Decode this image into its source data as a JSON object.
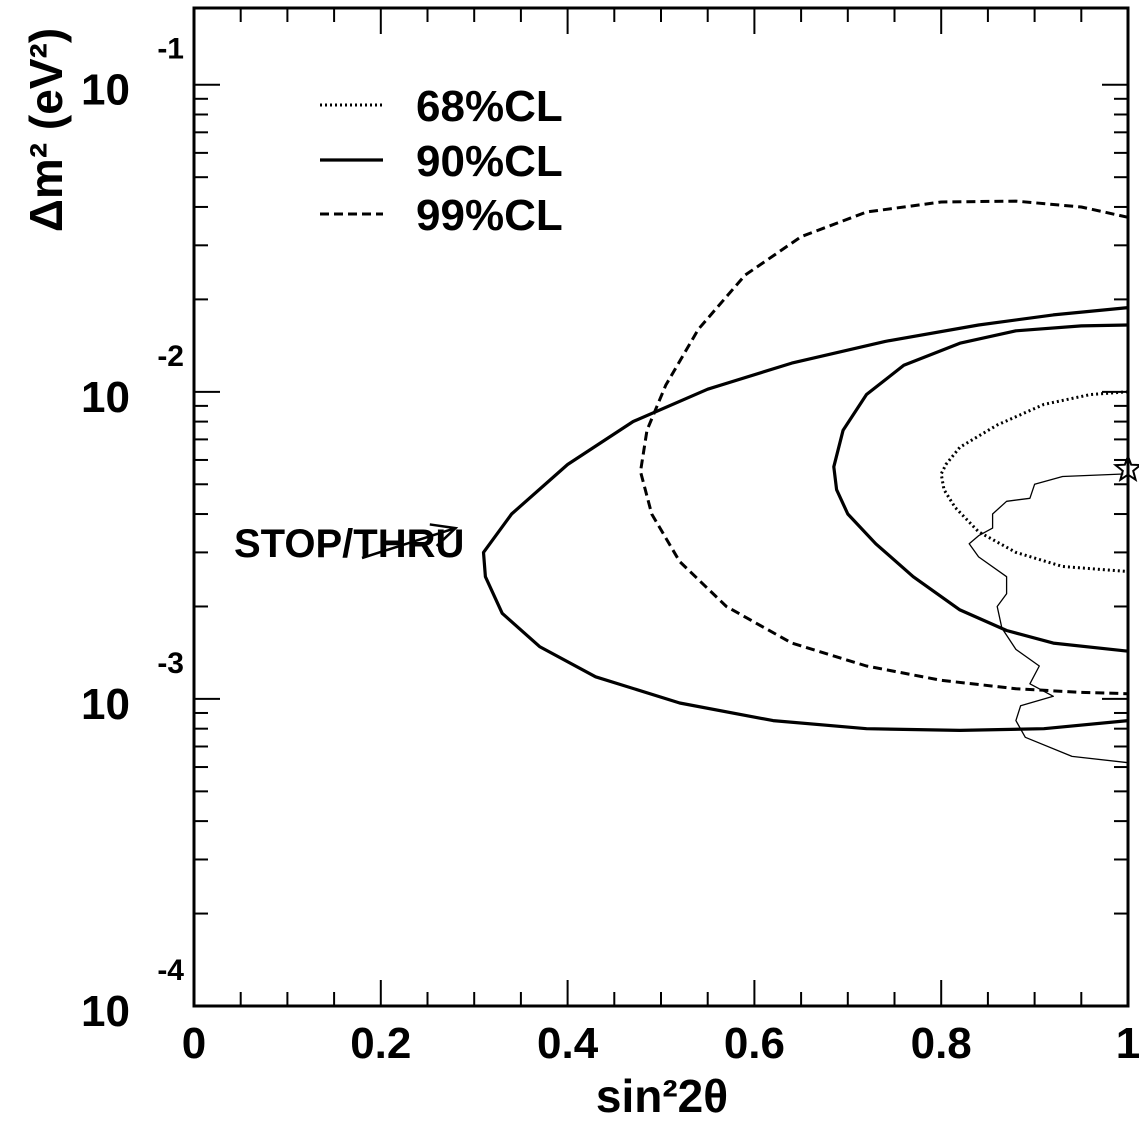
{
  "chart_data": {
    "type": "line",
    "title": "",
    "xlabel": "sin²2θ",
    "ylabel": "Δm² (eV²)",
    "x_axis": {
      "min": 0,
      "max": 1,
      "scale": "linear"
    },
    "y_axis": {
      "min": 0.0001,
      "max": 0.1778,
      "scale": "log"
    },
    "x_ticks": [
      {
        "value": 0,
        "label": "0"
      },
      {
        "value": 0.2,
        "label": "0.2"
      },
      {
        "value": 0.4,
        "label": "0.4"
      },
      {
        "value": 0.6,
        "label": "0.6"
      },
      {
        "value": 0.8,
        "label": "0.8"
      },
      {
        "value": 1,
        "label": "1"
      }
    ],
    "y_ticks": [
      {
        "value": 0.1,
        "base": "10",
        "exp": "-1"
      },
      {
        "value": 0.01,
        "base": "10",
        "exp": "-2"
      },
      {
        "value": 0.001,
        "base": "10",
        "exp": "-3"
      },
      {
        "value": 0.0001,
        "base": "10",
        "exp": "-4"
      }
    ],
    "legend": {
      "position": "top-left",
      "entries": [
        {
          "label": "68%CL",
          "style": "dotted"
        },
        {
          "label": "90%CL",
          "style": "solid"
        },
        {
          "label": "99%CL",
          "style": "dashed"
        }
      ]
    },
    "series": [
      {
        "name": "68%CL",
        "style": "dotted",
        "points": [
          [
            1.0,
            0.01
          ],
          [
            0.96,
            0.0098
          ],
          [
            0.91,
            0.0091
          ],
          [
            0.86,
            0.0078
          ],
          [
            0.82,
            0.0066
          ],
          [
            0.805,
            0.0058
          ],
          [
            0.8,
            0.0054
          ],
          [
            0.803,
            0.0048
          ],
          [
            0.815,
            0.0042
          ],
          [
            0.84,
            0.0035
          ],
          [
            0.88,
            0.003
          ],
          [
            0.93,
            0.0027
          ],
          [
            1.0,
            0.0026
          ]
        ]
      },
      {
        "name": "90%CL",
        "style": "solid",
        "points": [
          [
            1.0,
            0.0165
          ],
          [
            0.95,
            0.0164
          ],
          [
            0.88,
            0.0158
          ],
          [
            0.82,
            0.0144
          ],
          [
            0.76,
            0.0122
          ],
          [
            0.72,
            0.0098
          ],
          [
            0.695,
            0.0075
          ],
          [
            0.685,
            0.0057
          ],
          [
            0.688,
            0.0048
          ],
          [
            0.7,
            0.004
          ],
          [
            0.73,
            0.0032
          ],
          [
            0.77,
            0.0025
          ],
          [
            0.82,
            0.00195
          ],
          [
            0.87,
            0.00167
          ],
          [
            0.92,
            0.00152
          ],
          [
            1.0,
            0.00143
          ]
        ]
      },
      {
        "name": "90%CL",
        "style": "solid",
        "points": [
          [
            1.0,
            0.0188
          ],
          [
            0.92,
            0.0178
          ],
          [
            0.84,
            0.0165
          ],
          [
            0.74,
            0.0146
          ],
          [
            0.64,
            0.0124
          ],
          [
            0.55,
            0.0102
          ],
          [
            0.47,
            0.008
          ],
          [
            0.4,
            0.0058
          ],
          [
            0.34,
            0.004
          ],
          [
            0.31,
            0.003
          ],
          [
            0.312,
            0.0025
          ],
          [
            0.33,
            0.0019
          ],
          [
            0.37,
            0.00148
          ],
          [
            0.43,
            0.00118
          ],
          [
            0.52,
            0.00097
          ],
          [
            0.62,
            0.00085
          ],
          [
            0.72,
            0.0008
          ],
          [
            0.82,
            0.00079
          ],
          [
            0.91,
            0.0008
          ],
          [
            1.0,
            0.00085
          ]
        ]
      },
      {
        "name": "99%CL",
        "style": "dashed",
        "points": [
          [
            1.0,
            0.037
          ],
          [
            0.95,
            0.04
          ],
          [
            0.88,
            0.0418
          ],
          [
            0.8,
            0.0415
          ],
          [
            0.72,
            0.0385
          ],
          [
            0.65,
            0.032
          ],
          [
            0.59,
            0.024
          ],
          [
            0.54,
            0.016
          ],
          [
            0.505,
            0.0105
          ],
          [
            0.485,
            0.0075
          ],
          [
            0.478,
            0.0055
          ],
          [
            0.49,
            0.004
          ],
          [
            0.52,
            0.0028
          ],
          [
            0.57,
            0.002
          ],
          [
            0.64,
            0.00152
          ],
          [
            0.72,
            0.00128
          ],
          [
            0.8,
            0.00115
          ],
          [
            0.88,
            0.00108
          ],
          [
            0.95,
            0.00105
          ],
          [
            1.0,
            0.00104
          ]
        ]
      },
      {
        "name": "STOP/THRU",
        "style": "thin",
        "points": [
          [
            0.995,
            0.0054
          ],
          [
            0.93,
            0.0053
          ],
          [
            0.9,
            0.005
          ],
          [
            0.895,
            0.0045
          ],
          [
            0.87,
            0.0044
          ],
          [
            0.855,
            0.004
          ],
          [
            0.855,
            0.0036
          ],
          [
            0.84,
            0.0034
          ],
          [
            0.83,
            0.0032
          ],
          [
            0.84,
            0.0029
          ],
          [
            0.87,
            0.0025
          ],
          [
            0.87,
            0.0022
          ],
          [
            0.86,
            0.002
          ],
          [
            0.865,
            0.0017
          ],
          [
            0.88,
            0.00145
          ],
          [
            0.905,
            0.00128
          ],
          [
            0.895,
            0.00112
          ],
          [
            0.92,
            0.00102
          ],
          [
            0.885,
            0.00095
          ],
          [
            0.88,
            0.00085
          ],
          [
            0.89,
            0.00075
          ],
          [
            0.94,
            0.00065
          ],
          [
            1.0,
            0.00062
          ]
        ]
      }
    ],
    "best_fit": {
      "x": 1.0,
      "y": 0.0056,
      "marker": "star"
    },
    "annotations": [
      {
        "text": "STOP/THRU",
        "arrow_to": [
          0.28,
          0.0036
        ]
      }
    ]
  }
}
